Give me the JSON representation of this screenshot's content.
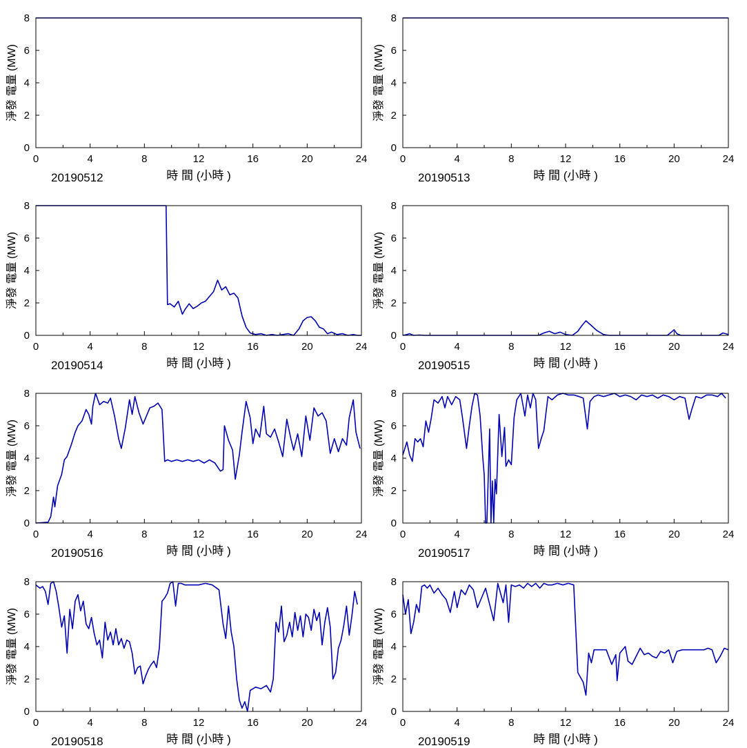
{
  "chart_data": [
    {
      "type": "line",
      "date_label": "20190512",
      "xlabel": "時 間 (小時 )",
      "ylabel": "淨發 電量 (MW)",
      "xlim": [
        0,
        24
      ],
      "ylim": [
        0,
        8
      ],
      "xticks": [
        "0",
        "4",
        "8",
        "12",
        "16",
        "20",
        "24"
      ],
      "yticks": [
        "0",
        "2",
        "4",
        "6",
        "8"
      ],
      "x": [
        0,
        24
      ],
      "y": [
        8,
        8
      ]
    },
    {
      "type": "line",
      "date_label": "20190513",
      "xlabel": "時 間 (小時 )",
      "ylabel": "淨發 電量 (MW)",
      "xlim": [
        0,
        24
      ],
      "ylim": [
        0,
        8
      ],
      "xticks": [
        "0",
        "4",
        "8",
        "12",
        "16",
        "20",
        "24"
      ],
      "yticks": [
        "0",
        "2",
        "4",
        "6",
        "8"
      ],
      "x": [
        0,
        24
      ],
      "y": [
        8,
        8
      ]
    },
    {
      "type": "line",
      "date_label": "20190514",
      "xlabel": "時 間 (小時 )",
      "ylabel": "淨發 電量 (MW)",
      "xlim": [
        0,
        24
      ],
      "ylim": [
        0,
        8
      ],
      "xticks": [
        "0",
        "4",
        "8",
        "12",
        "16",
        "20",
        "24"
      ],
      "yticks": [
        "0",
        "2",
        "4",
        "6",
        "8"
      ],
      "x": [
        0,
        9.6,
        9.7,
        9.9,
        10.2,
        10.5,
        10.8,
        11.0,
        11.3,
        11.6,
        11.9,
        12.2,
        12.5,
        12.8,
        13.1,
        13.4,
        13.7,
        14.0,
        14.3,
        14.6,
        14.9,
        15.2,
        15.5,
        15.8,
        16.2,
        16.6,
        17.0,
        17.4,
        17.8,
        18.2,
        18.6,
        19.0,
        19.4,
        19.7,
        20.0,
        20.3,
        20.6,
        20.9,
        21.2,
        21.5,
        21.8,
        22.2,
        22.6,
        23.0,
        23.4,
        23.7,
        24.0
      ],
      "y": [
        8,
        8,
        1.9,
        1.95,
        1.75,
        2.1,
        1.3,
        1.6,
        1.95,
        1.65,
        1.8,
        2.0,
        2.1,
        2.4,
        2.7,
        3.4,
        2.8,
        3.0,
        2.5,
        2.6,
        2.3,
        1.2,
        0.5,
        0.15,
        0.05,
        0.1,
        0.0,
        0.05,
        0.0,
        0.05,
        0.1,
        0.0,
        0.4,
        0.9,
        1.1,
        1.15,
        0.9,
        0.5,
        0.4,
        0.1,
        0.2,
        0.05,
        0.1,
        0.0,
        0.05,
        0.0,
        0.0
      ]
    },
    {
      "type": "line",
      "date_label": "20190515",
      "xlabel": "時 間 (小時 )",
      "ylabel": "淨發 電量 (MW)",
      "xlim": [
        0,
        24
      ],
      "ylim": [
        0,
        8
      ],
      "xticks": [
        "0",
        "4",
        "8",
        "12",
        "16",
        "20",
        "24"
      ],
      "yticks": [
        "0",
        "2",
        "4",
        "6",
        "8"
      ],
      "x": [
        0,
        0.3,
        0.5,
        0.8,
        1.2,
        1.6,
        2.0,
        10.0,
        10.4,
        10.8,
        11.2,
        11.6,
        12.0,
        12.5,
        12.9,
        13.2,
        13.5,
        13.9,
        14.3,
        14.8,
        15.2,
        16.0,
        19.5,
        19.8,
        20.0,
        20.2,
        20.5,
        23.3,
        23.6,
        23.8,
        24.0
      ],
      "y": [
        0.0,
        0.05,
        0.1,
        0.0,
        0.02,
        0.0,
        0.0,
        0.0,
        0.15,
        0.25,
        0.1,
        0.2,
        0.05,
        0.0,
        0.25,
        0.6,
        0.9,
        0.6,
        0.3,
        0.05,
        0.0,
        0.0,
        0.0,
        0.2,
        0.35,
        0.1,
        0.0,
        0.0,
        0.15,
        0.1,
        0.05
      ]
    },
    {
      "type": "line",
      "date_label": "20190516",
      "xlabel": "時 間 (小時 )",
      "ylabel": "淨發 電量 (MW)",
      "xlim": [
        0,
        24
      ],
      "ylim": [
        0,
        8
      ],
      "xticks": [
        "0",
        "4",
        "8",
        "12",
        "16",
        "20",
        "24"
      ],
      "yticks": [
        "0",
        "2",
        "4",
        "6",
        "8"
      ],
      "x": [
        0,
        0.9,
        1.1,
        1.3,
        1.4,
        1.6,
        1.9,
        2.1,
        2.3,
        2.6,
        2.9,
        3.1,
        3.4,
        3.7,
        3.9,
        4.1,
        4.2,
        4.4,
        4.7,
        5.0,
        5.3,
        5.5,
        5.8,
        6.1,
        6.3,
        6.6,
        6.9,
        7.1,
        7.3,
        7.6,
        7.9,
        8.1,
        8.4,
        8.7,
        9.0,
        9.3,
        9.5,
        9.7,
        10.0,
        10.4,
        10.8,
        11.2,
        11.6,
        12.0,
        12.4,
        12.8,
        13.2,
        13.6,
        13.8,
        13.9,
        14.2,
        14.5,
        14.7,
        15.0,
        15.2,
        15.5,
        15.8,
        16.0,
        16.2,
        16.5,
        16.8,
        17.0,
        17.3,
        17.6,
        17.9,
        18.2,
        18.5,
        18.8,
        19.0,
        19.3,
        19.6,
        19.9,
        20.2,
        20.5,
        20.8,
        21.1,
        21.4,
        21.7,
        22.0,
        22.3,
        22.6,
        22.9,
        23.1,
        23.4,
        23.6,
        23.9
      ],
      "y": [
        0,
        0.05,
        0.4,
        1.6,
        1.0,
        2.3,
        3.0,
        3.9,
        4.1,
        4.8,
        5.6,
        6.0,
        6.3,
        7.0,
        6.7,
        6.1,
        7.2,
        8.0,
        7.3,
        7.5,
        7.4,
        7.7,
        6.6,
        5.2,
        4.6,
        5.9,
        7.6,
        6.7,
        7.8,
        6.8,
        6.1,
        6.5,
        7.1,
        7.2,
        7.4,
        7.0,
        3.8,
        3.9,
        3.8,
        3.9,
        3.8,
        3.9,
        3.8,
        3.9,
        3.7,
        3.9,
        3.7,
        3.2,
        3.3,
        6.0,
        5.1,
        4.5,
        2.7,
        4.2,
        5.6,
        7.5,
        6.5,
        4.9,
        5.8,
        5.3,
        7.2,
        5.5,
        5.3,
        5.8,
        5.0,
        4.1,
        6.4,
        5.2,
        4.5,
        5.5,
        4.1,
        6.6,
        5.1,
        7.1,
        6.6,
        6.8,
        6.3,
        4.3,
        5.2,
        4.4,
        5.2,
        4.8,
        6.5,
        7.6,
        5.6,
        4.6
      ]
    },
    {
      "type": "line",
      "date_label": "20190517",
      "xlabel": "時 間 (小時 )",
      "ylabel": "淨發 電量 (MW)",
      "xlim": [
        0,
        24
      ],
      "ylim": [
        0,
        8
      ],
      "xticks": [
        "0",
        "4",
        "8",
        "12",
        "16",
        "20",
        "24"
      ],
      "yticks": [
        "0",
        "2",
        "4",
        "6",
        "8"
      ],
      "x": [
        0,
        0.3,
        0.5,
        0.7,
        0.9,
        1.1,
        1.3,
        1.5,
        1.7,
        1.9,
        2.1,
        2.3,
        2.6,
        2.9,
        3.1,
        3.3,
        3.6,
        3.9,
        4.2,
        4.4,
        4.7,
        4.9,
        5.1,
        5.3,
        5.5,
        5.7,
        5.9,
        6.0,
        6.1,
        6.2,
        6.4,
        6.5,
        6.6,
        6.7,
        6.8,
        6.9,
        7.1,
        7.3,
        7.5,
        7.6,
        7.8,
        8.0,
        8.2,
        8.4,
        8.7,
        9.0,
        9.2,
        9.4,
        9.6,
        9.8,
        10.0,
        10.2,
        10.4,
        10.7,
        11.0,
        11.4,
        11.8,
        12.2,
        12.6,
        13.0,
        13.3,
        13.6,
        13.8,
        14.1,
        14.4,
        14.8,
        15.2,
        15.6,
        16.0,
        16.4,
        16.8,
        17.2,
        17.6,
        18.0,
        18.4,
        18.8,
        19.2,
        19.6,
        20.0,
        20.4,
        20.8,
        21.1,
        21.3,
        21.6,
        22.0,
        22.4,
        22.8,
        23.2,
        23.5,
        23.8
      ],
      "y": [
        4.2,
        5.0,
        4.2,
        3.8,
        5.2,
        5.0,
        5.2,
        4.7,
        6.3,
        5.6,
        6.5,
        7.6,
        7.4,
        7.8,
        7.1,
        7.8,
        7.3,
        7.8,
        7.6,
        6.5,
        4.6,
        6.0,
        7.2,
        8.0,
        7.9,
        6.6,
        4.0,
        3.0,
        0.0,
        0.0,
        5.8,
        0.0,
        2.6,
        0.0,
        2.7,
        1.8,
        6.7,
        4.1,
        5.9,
        3.5,
        3.9,
        3.6,
        6.5,
        7.6,
        8.0,
        6.6,
        7.9,
        7.1,
        8.0,
        7.6,
        4.6,
        5.2,
        5.7,
        7.8,
        7.6,
        7.9,
        8.0,
        7.9,
        7.9,
        7.8,
        7.7,
        5.8,
        7.5,
        7.8,
        7.9,
        7.8,
        7.9,
        8.0,
        7.8,
        7.9,
        7.8,
        7.6,
        7.9,
        7.8,
        7.9,
        7.7,
        7.9,
        7.8,
        7.6,
        7.8,
        7.7,
        6.4,
        7.0,
        7.8,
        7.7,
        7.9,
        7.9,
        7.8,
        8.0,
        7.7
      ]
    },
    {
      "type": "line",
      "date_label": "20190518",
      "xlabel": "時 間 (小時 )",
      "ylabel": "淨發 電量 (MW)",
      "xlim": [
        0,
        24
      ],
      "ylim": [
        0,
        8
      ],
      "xticks": [
        "0",
        "4",
        "8",
        "12",
        "16",
        "20",
        "24"
      ],
      "yticks": [
        "0",
        "2",
        "4",
        "6",
        "8"
      ],
      "x": [
        0,
        0.3,
        0.5,
        0.7,
        0.9,
        1.1,
        1.3,
        1.5,
        1.7,
        1.9,
        2.1,
        2.3,
        2.5,
        2.7,
        2.9,
        3.1,
        3.3,
        3.5,
        3.7,
        3.9,
        4.1,
        4.3,
        4.5,
        4.7,
        4.9,
        5.1,
        5.3,
        5.5,
        5.7,
        5.9,
        6.1,
        6.3,
        6.5,
        6.7,
        6.9,
        7.1,
        7.3,
        7.5,
        7.7,
        7.9,
        8.1,
        8.3,
        8.5,
        8.7,
        8.9,
        9.1,
        9.3,
        9.5,
        9.7,
        9.9,
        10.1,
        10.3,
        10.5,
        10.7,
        11.0,
        11.5,
        12.0,
        12.5,
        13.0,
        13.5,
        13.8,
        14.0,
        14.2,
        14.4,
        14.6,
        14.8,
        15.0,
        15.2,
        15.4,
        15.6,
        15.8,
        16.2,
        16.6,
        17.0,
        17.3,
        17.5,
        17.7,
        17.9,
        18.1,
        18.3,
        18.5,
        18.7,
        18.9,
        19.1,
        19.3,
        19.5,
        19.7,
        19.9,
        20.1,
        20.3,
        20.5,
        20.7,
        20.9,
        21.1,
        21.3,
        21.5,
        21.7,
        21.9,
        22.1,
        22.3,
        22.5,
        22.7,
        22.9,
        23.1,
        23.3,
        23.5,
        23.7
      ],
      "y": [
        7.8,
        7.6,
        7.7,
        7.4,
        6.6,
        7.9,
        8.0,
        7.4,
        6.4,
        5.2,
        5.9,
        3.6,
        6.3,
        5.1,
        6.8,
        7.2,
        6.2,
        6.8,
        5.4,
        5.1,
        5.8,
        4.8,
        4.1,
        4.4,
        3.3,
        5.5,
        4.4,
        4.9,
        4.1,
        5.1,
        4.1,
        4.5,
        3.9,
        4.4,
        4.3,
        3.6,
        2.3,
        2.7,
        2.8,
        1.7,
        2.2,
        2.6,
        2.9,
        3.1,
        2.7,
        3.9,
        6.8,
        7.0,
        7.3,
        7.9,
        8.0,
        6.5,
        7.9,
        7.9,
        7.8,
        7.8,
        7.8,
        7.9,
        7.8,
        7.5,
        5.4,
        4.5,
        6.5,
        4.9,
        4.0,
        2.0,
        0.7,
        0.2,
        0.6,
        0.0,
        1.3,
        1.5,
        1.4,
        1.6,
        1.2,
        2.0,
        5.5,
        4.9,
        6.5,
        4.3,
        4.7,
        5.5,
        4.6,
        6.1,
        5.0,
        5.9,
        4.6,
        6.0,
        5.8,
        5.0,
        6.3,
        5.6,
        6.1,
        4.1,
        5.5,
        6.4,
        5.2,
        2.0,
        2.4,
        3.9,
        4.4,
        5.3,
        6.5,
        4.7,
        5.9,
        7.4,
        6.6
      ]
    },
    {
      "type": "line",
      "date_label": "20190519",
      "xlabel": "時 間 (小時 )",
      "ylabel": "淨發 電量 (MW)",
      "xlim": [
        0,
        24
      ],
      "ylim": [
        0,
        8
      ],
      "xticks": [
        "0",
        "4",
        "8",
        "12",
        "16",
        "20",
        "24"
      ],
      "yticks": [
        "0",
        "2",
        "4",
        "6",
        "8"
      ],
      "x": [
        0,
        0.2,
        0.4,
        0.6,
        0.8,
        1.0,
        1.2,
        1.4,
        1.6,
        1.8,
        2.0,
        2.3,
        2.6,
        2.9,
        3.2,
        3.5,
        3.8,
        4.0,
        4.3,
        4.6,
        4.9,
        5.2,
        5.5,
        5.8,
        6.1,
        6.4,
        6.7,
        7.0,
        7.2,
        7.4,
        7.6,
        7.8,
        8.0,
        8.3,
        8.6,
        8.9,
        9.2,
        9.5,
        9.8,
        10.1,
        10.4,
        10.7,
        11.0,
        11.4,
        11.8,
        12.2,
        12.6,
        12.9,
        13.1,
        13.3,
        13.5,
        13.7,
        13.9,
        14.1,
        14.3,
        14.6,
        15.0,
        15.4,
        15.7,
        15.8,
        16.0,
        16.2,
        16.4,
        16.6,
        16.9,
        17.2,
        17.5,
        17.8,
        18.1,
        18.4,
        18.7,
        19.0,
        19.3,
        19.6,
        19.9,
        20.2,
        20.6,
        21.0,
        21.4,
        21.8,
        22.2,
        22.5,
        22.8,
        23.1,
        23.4,
        23.7,
        24.0
      ],
      "y": [
        7.2,
        6.0,
        6.9,
        4.8,
        5.5,
        6.6,
        6.1,
        7.7,
        7.8,
        7.6,
        7.8,
        7.3,
        7.6,
        7.2,
        6.9,
        6.1,
        7.4,
        6.4,
        7.5,
        7.2,
        7.8,
        7.5,
        6.4,
        7.0,
        7.6,
        6.6,
        5.6,
        7.9,
        7.3,
        6.7,
        7.8,
        5.5,
        7.8,
        7.7,
        7.8,
        7.6,
        7.9,
        7.7,
        7.9,
        7.6,
        7.9,
        7.8,
        7.8,
        7.9,
        7.8,
        7.9,
        7.8,
        2.4,
        2.1,
        1.8,
        1.0,
        3.6,
        3.0,
        3.8,
        3.8,
        3.8,
        3.8,
        2.9,
        3.5,
        1.9,
        3.6,
        3.8,
        4.0,
        3.1,
        2.9,
        3.4,
        3.9,
        3.5,
        3.6,
        3.4,
        3.3,
        3.7,
        3.6,
        3.8,
        3.0,
        3.7,
        3.8,
        3.8,
        3.8,
        3.8,
        3.8,
        3.9,
        3.8,
        3.0,
        3.4,
        3.9,
        3.8
      ]
    }
  ],
  "colors": {
    "series": "#0000b4",
    "axis": "#000000",
    "background": "#ffffff"
  }
}
